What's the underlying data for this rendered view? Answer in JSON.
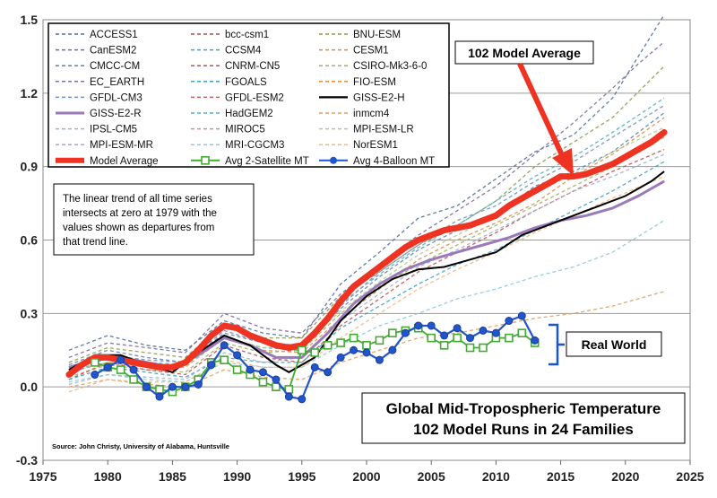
{
  "chart_data": {
    "type": "line",
    "title": "Global Mid-Tropospheric Temperature",
    "subtitle": "102 Model Runs in 24 Families",
    "xlabel": "",
    "ylabel": "",
    "xlim": [
      1975,
      2025
    ],
    "ylim": [
      -0.3,
      1.5
    ],
    "x_ticks": [
      1975,
      1980,
      1985,
      1990,
      1995,
      2000,
      2005,
      2010,
      2015,
      2020,
      2025
    ],
    "y_ticks": [
      "-0.3",
      "0.0",
      "0.3",
      "0.6",
      "0.9",
      "1.2",
      "1.5"
    ],
    "grid": true,
    "legend_position": "top-left",
    "note": "The linear trend of all time series intersects at zero at 1979 with the values shown as departures from that trend line.",
    "source": "Source: John Christy, University of Alabama, Huntsville",
    "annotations": {
      "model_average_label": "102 Model Average",
      "real_world_label": "Real World"
    },
    "legend": [
      {
        "name": "ACCESS1",
        "color": "#4f6f9f",
        "style": "dashed"
      },
      {
        "name": "bcc-csm1",
        "color": "#a05050",
        "style": "dashed"
      },
      {
        "name": "BNU-ESM",
        "color": "#8a9a50",
        "style": "dashed"
      },
      {
        "name": "CanESM2",
        "color": "#7a6a9a",
        "style": "dashed"
      },
      {
        "name": "CCSM4",
        "color": "#4aa0b0",
        "style": "dashed"
      },
      {
        "name": "CESM1",
        "color": "#d09050",
        "style": "dashed"
      },
      {
        "name": "CMCC-CM",
        "color": "#6080b0",
        "style": "dashed"
      },
      {
        "name": "CNRM-CN5",
        "color": "#c05050",
        "style": "dashed"
      },
      {
        "name": "CSIRO-Mk3-6-0",
        "color": "#a0b060",
        "style": "dashed"
      },
      {
        "name": "EC_EARTH",
        "color": "#8070a0",
        "style": "dashed"
      },
      {
        "name": "FGOALS",
        "color": "#40a0c0",
        "style": "dashed"
      },
      {
        "name": "FIO-ESM",
        "color": "#e09040",
        "style": "dashed"
      },
      {
        "name": "GFDL-CM3",
        "color": "#7090c0",
        "style": "dashed"
      },
      {
        "name": "GFDL-ESM2",
        "color": "#c06060",
        "style": "dashed"
      },
      {
        "name": "GISS-E2-H",
        "color": "#000000",
        "style": "solid"
      },
      {
        "name": "GISS-E2-R",
        "color": "#9a7ab8",
        "style": "solid"
      },
      {
        "name": "HadGEM2",
        "color": "#50b0c0",
        "style": "dashed"
      },
      {
        "name": "inmcm4",
        "color": "#e0a060",
        "style": "dashed"
      },
      {
        "name": "IPSL-CM5",
        "color": "#a0b0d0",
        "style": "dashed"
      },
      {
        "name": "MIROC5",
        "color": "#d09090",
        "style": "dashed"
      },
      {
        "name": "MPI-ESM-LR",
        "color": "#b8c890",
        "style": "dashed"
      },
      {
        "name": "MPI-ESM-MR",
        "color": "#b0a0c8",
        "style": "dashed"
      },
      {
        "name": "MRI-CGCM3",
        "color": "#90c8d8",
        "style": "dashed"
      },
      {
        "name": "NorESM1",
        "color": "#f0b880",
        "style": "dashed"
      },
      {
        "name": "Model Average",
        "color": "#ee3322",
        "style": "thick"
      },
      {
        "name": "Avg 2-Satellite MT",
        "color": "#44aa33",
        "style": "square-markers"
      },
      {
        "name": "Avg 4-Balloon MT",
        "color": "#2255cc",
        "style": "circle-markers"
      }
    ],
    "series": [
      {
        "name": "Model Average",
        "color": "#ee3322",
        "x": [
          1977,
          1978,
          1979,
          1980,
          1981,
          1982,
          1983,
          1984,
          1985,
          1986,
          1987,
          1988,
          1989,
          1990,
          1991,
          1992,
          1993,
          1994,
          1995,
          1996,
          1997,
          1998,
          1999,
          2000,
          2001,
          2002,
          2003,
          2004,
          2005,
          2006,
          2007,
          2008,
          2009,
          2010,
          2011,
          2012,
          2013,
          2014,
          2015,
          2016,
          2017,
          2018,
          2019,
          2020,
          2021,
          2022,
          2023
        ],
        "y": [
          0.05,
          0.09,
          0.12,
          0.12,
          0.11,
          0.1,
          0.09,
          0.08,
          0.08,
          0.1,
          0.15,
          0.21,
          0.25,
          0.24,
          0.21,
          0.19,
          0.17,
          0.16,
          0.17,
          0.22,
          0.28,
          0.35,
          0.41,
          0.45,
          0.49,
          0.53,
          0.57,
          0.6,
          0.62,
          0.64,
          0.65,
          0.66,
          0.68,
          0.7,
          0.74,
          0.77,
          0.8,
          0.83,
          0.86,
          0.86,
          0.87,
          0.89,
          0.91,
          0.94,
          0.97,
          1.0,
          1.04
        ]
      },
      {
        "name": "GISS-E2-H",
        "color": "#000000",
        "x": [
          1977,
          1979,
          1981,
          1983,
          1985,
          1987,
          1989,
          1991,
          1993,
          1994,
          1996,
          1998,
          2000,
          2002,
          2004,
          2006,
          2008,
          2010,
          2012,
          2014,
          2016,
          2018,
          2020,
          2022,
          2023
        ],
        "y": [
          0.07,
          0.13,
          0.13,
          0.09,
          0.06,
          0.14,
          0.21,
          0.17,
          0.09,
          0.06,
          0.12,
          0.27,
          0.37,
          0.44,
          0.48,
          0.49,
          0.52,
          0.55,
          0.62,
          0.66,
          0.7,
          0.74,
          0.78,
          0.84,
          0.88
        ]
      },
      {
        "name": "GISS-E2-R",
        "color": "#9a7ab8",
        "x": [
          1977,
          1979,
          1981,
          1983,
          1985,
          1987,
          1989,
          1991,
          1993,
          1995,
          1997,
          1999,
          2001,
          2003,
          2005,
          2007,
          2009,
          2011,
          2013,
          2015,
          2017,
          2019,
          2021,
          2023
        ],
        "y": [
          0.08,
          0.11,
          0.12,
          0.1,
          0.08,
          0.13,
          0.2,
          0.17,
          0.12,
          0.12,
          0.22,
          0.34,
          0.42,
          0.48,
          0.52,
          0.55,
          0.58,
          0.61,
          0.65,
          0.68,
          0.7,
          0.73,
          0.78,
          0.84
        ]
      },
      {
        "name": "Avg 2-Satellite MT",
        "color": "#44aa33",
        "x": [
          1979,
          1980,
          1981,
          1982,
          1983,
          1984,
          1985,
          1986,
          1987,
          1988,
          1989,
          1990,
          1991,
          1992,
          1993,
          1994,
          1995,
          1996,
          1997,
          1998,
          1999,
          2000,
          2001,
          2002,
          2003,
          2004,
          2005,
          2006,
          2007,
          2008,
          2009,
          2010,
          2011,
          2012,
          2013
        ],
        "y": [
          0.1,
          0.08,
          0.07,
          0.03,
          0.0,
          -0.01,
          -0.02,
          0.0,
          0.03,
          0.1,
          0.11,
          0.07,
          0.05,
          0.02,
          0.0,
          -0.01,
          0.15,
          0.14,
          0.17,
          0.18,
          0.2,
          0.17,
          0.19,
          0.22,
          0.23,
          0.24,
          0.2,
          0.17,
          0.2,
          0.16,
          0.16,
          0.2,
          0.2,
          0.22,
          0.18
        ]
      },
      {
        "name": "Avg 4-Balloon MT",
        "color": "#2255cc",
        "x": [
          1979,
          1980,
          1981,
          1982,
          1983,
          1984,
          1985,
          1986,
          1987,
          1988,
          1989,
          1990,
          1991,
          1992,
          1993,
          1994,
          1995,
          1996,
          1997,
          1998,
          1999,
          2000,
          2001,
          2002,
          2003,
          2004,
          2005,
          2006,
          2007,
          2008,
          2009,
          2010,
          2011,
          2012,
          2013
        ],
        "y": [
          0.05,
          0.08,
          0.11,
          0.07,
          0.0,
          -0.04,
          0.0,
          0.0,
          0.01,
          0.09,
          0.17,
          0.13,
          0.07,
          0.06,
          0.03,
          -0.04,
          -0.05,
          0.08,
          0.06,
          0.12,
          0.15,
          0.14,
          0.11,
          0.15,
          0.22,
          0.25,
          0.25,
          0.21,
          0.24,
          0.2,
          0.23,
          0.22,
          0.27,
          0.29,
          0.19
        ]
      },
      {
        "name": "ACCESS1",
        "color": "#4f6f9f",
        "x": [
          1977,
          1980,
          1983,
          1986,
          1989,
          1992,
          1995,
          1998,
          2001,
          2004,
          2007,
          2010,
          2013,
          2016,
          2019,
          2021,
          2023
        ],
        "y": [
          0.15,
          0.21,
          0.17,
          0.15,
          0.27,
          0.22,
          0.2,
          0.42,
          0.55,
          0.69,
          0.74,
          0.85,
          0.96,
          1.03,
          1.18,
          1.35,
          1.52
        ]
      },
      {
        "name": "CanESM2",
        "color": "#7a6a9a",
        "x": [
          1977,
          1980,
          1983,
          1986,
          1989,
          1992,
          1995,
          1998,
          2001,
          2004,
          2007,
          2010,
          2013,
          2016,
          2019,
          2021,
          2023
        ],
        "y": [
          0.12,
          0.18,
          0.16,
          0.14,
          0.3,
          0.24,
          0.22,
          0.38,
          0.5,
          0.62,
          0.72,
          0.82,
          0.95,
          1.08,
          1.22,
          1.32,
          1.41
        ]
      },
      {
        "name": "BNU-ESM",
        "color": "#8a9a50",
        "x": [
          1977,
          1980,
          1983,
          1986,
          1989,
          1992,
          1995,
          1998,
          2001,
          2004,
          2007,
          2010,
          2013,
          2016,
          2019,
          2023
        ],
        "y": [
          0.1,
          0.16,
          0.14,
          0.12,
          0.26,
          0.2,
          0.2,
          0.37,
          0.47,
          0.58,
          0.66,
          0.76,
          0.9,
          1.0,
          1.1,
          1.31
        ]
      },
      {
        "name": "CMCC-CM",
        "color": "#6080b0",
        "x": [
          1977,
          1980,
          1983,
          1986,
          1989,
          1992,
          1995,
          1998,
          2001,
          2004,
          2007,
          2010,
          2013,
          2016,
          2019,
          2023
        ],
        "y": [
          0.09,
          0.15,
          0.12,
          0.1,
          0.22,
          0.18,
          0.17,
          0.32,
          0.45,
          0.56,
          0.64,
          0.7,
          0.82,
          0.88,
          0.96,
          1.12
        ]
      },
      {
        "name": "CESM1",
        "color": "#d09050",
        "x": [
          1977,
          1980,
          1983,
          1986,
          1989,
          1992,
          1995,
          1998,
          2001,
          2004,
          2007,
          2010,
          2013,
          2016,
          2019,
          2023
        ],
        "y": [
          0.06,
          0.1,
          0.08,
          0.08,
          0.2,
          0.15,
          0.14,
          0.28,
          0.4,
          0.52,
          0.6,
          0.67,
          0.75,
          0.86,
          0.95,
          1.1
        ]
      },
      {
        "name": "CSIRO-Mk3-6-0",
        "color": "#a0b060",
        "x": [
          1977,
          1980,
          1983,
          1986,
          1989,
          1992,
          1995,
          1998,
          2001,
          2004,
          2007,
          2010,
          2013,
          2016,
          2019,
          2023
        ],
        "y": [
          0.04,
          0.09,
          0.07,
          0.06,
          0.18,
          0.14,
          0.15,
          0.3,
          0.41,
          0.5,
          0.58,
          0.66,
          0.74,
          0.82,
          0.9,
          1.02
        ]
      },
      {
        "name": "CNRM-CN5",
        "color": "#c05050",
        "x": [
          1977,
          1980,
          1983,
          1986,
          1989,
          1992,
          1995,
          1998,
          2001,
          2004,
          2007,
          2010,
          2013,
          2016,
          2019,
          2023
        ],
        "y": [
          0.03,
          0.1,
          0.07,
          0.05,
          0.17,
          0.12,
          0.1,
          0.25,
          0.36,
          0.47,
          0.55,
          0.63,
          0.72,
          0.8,
          0.88,
          0.97
        ]
      },
      {
        "name": "inmcm4",
        "color": "#e0a060",
        "x": [
          1977,
          1980,
          1983,
          1986,
          1989,
          1992,
          1995,
          1998,
          2001,
          2004,
          2007,
          2010,
          2013,
          2016,
          2019,
          2023
        ],
        "y": [
          0.0,
          0.03,
          0.01,
          0.0,
          0.07,
          0.04,
          0.03,
          0.1,
          0.15,
          0.2,
          0.22,
          0.25,
          0.28,
          0.3,
          0.33,
          0.39
        ]
      },
      {
        "name": "MRI-CGCM3",
        "color": "#90c8d8",
        "x": [
          1977,
          1980,
          1983,
          1986,
          1989,
          1992,
          1995,
          1998,
          2001,
          2004,
          2007,
          2010,
          2013,
          2016,
          2019,
          2023
        ],
        "y": [
          0.02,
          0.05,
          0.03,
          0.02,
          0.1,
          0.08,
          0.08,
          0.17,
          0.25,
          0.3,
          0.36,
          0.4,
          0.45,
          0.49,
          0.55,
          0.68
        ]
      },
      {
        "name": "HadGEM2",
        "color": "#50b0c0",
        "x": [
          1977,
          1980,
          1983,
          1986,
          1989,
          1992,
          1995,
          1998,
          2001,
          2004,
          2007,
          2010,
          2013,
          2016,
          2019,
          2023
        ],
        "y": [
          0.05,
          0.12,
          0.1,
          0.09,
          0.2,
          0.16,
          0.15,
          0.34,
          0.46,
          0.57,
          0.66,
          0.76,
          0.86,
          0.94,
          1.04,
          1.18
        ]
      },
      {
        "name": "FGOALS",
        "color": "#40a0c0",
        "x": [
          1977,
          1980,
          1983,
          1986,
          1989,
          1992,
          1995,
          1998,
          2001,
          2004,
          2007,
          2010,
          2013,
          2016,
          2019,
          2023
        ],
        "y": [
          0.03,
          0.08,
          0.06,
          0.04,
          0.12,
          0.1,
          0.1,
          0.24,
          0.33,
          0.42,
          0.5,
          0.56,
          0.64,
          0.72,
          0.8,
          0.92
        ]
      },
      {
        "name": "GFDL-CM3",
        "color": "#7090c0",
        "x": [
          1977,
          1980,
          1983,
          1986,
          1989,
          1992,
          1995,
          1998,
          2001,
          2004,
          2007,
          2010,
          2013,
          2016,
          2019,
          2023
        ],
        "y": [
          0.07,
          0.13,
          0.11,
          0.1,
          0.23,
          0.18,
          0.16,
          0.33,
          0.47,
          0.58,
          0.68,
          0.74,
          0.84,
          0.92,
          1.02,
          1.15
        ]
      },
      {
        "name": "MPI-ESM-LR",
        "color": "#b8c890",
        "x": [
          1977,
          1980,
          1983,
          1986,
          1989,
          1992,
          1995,
          1998,
          2001,
          2004,
          2007,
          2010,
          2013,
          2016,
          2019,
          2023
        ],
        "y": [
          0.08,
          0.12,
          0.1,
          0.08,
          0.2,
          0.16,
          0.17,
          0.31,
          0.43,
          0.54,
          0.62,
          0.7,
          0.79,
          0.87,
          0.96,
          1.06
        ]
      },
      {
        "name": "IPSL-CM5",
        "color": "#a0b0d0",
        "x": [
          1977,
          1980,
          1983,
          1986,
          1989,
          1992,
          1995,
          1998,
          2001,
          2004,
          2007,
          2010,
          2013,
          2016,
          2019,
          2023
        ],
        "y": [
          0.01,
          0.05,
          0.04,
          0.03,
          0.14,
          0.1,
          0.12,
          0.27,
          0.38,
          0.49,
          0.56,
          0.64,
          0.72,
          0.8,
          0.86,
          0.95
        ]
      },
      {
        "name": "NorESM1",
        "color": "#f0b880",
        "x": [
          1977,
          1980,
          1983,
          1986,
          1989,
          1992,
          1995,
          1998,
          2001,
          2004,
          2007,
          2010,
          2013,
          2016,
          2019,
          2023
        ],
        "y": [
          -0.02,
          0.03,
          0.02,
          0.02,
          0.11,
          0.08,
          0.08,
          0.2,
          0.3,
          0.4,
          0.48,
          0.55,
          0.63,
          0.7,
          0.77,
          0.86
        ]
      }
    ]
  }
}
